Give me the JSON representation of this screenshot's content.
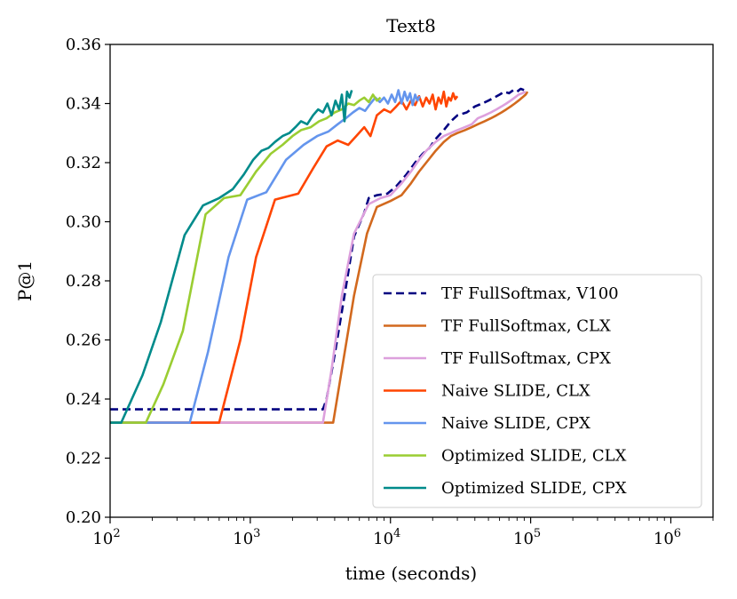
{
  "chart_data": {
    "type": "line",
    "title": "Text8",
    "xlabel": "time (seconds)",
    "ylabel": "P@1",
    "xscale": "log",
    "xlim": [
      100,
      2000000
    ],
    "ylim": [
      0.2,
      0.36
    ],
    "y_ticks": [
      {
        "value": 0.2,
        "label": "0.20"
      },
      {
        "value": 0.22,
        "label": "0.22"
      },
      {
        "value": 0.24,
        "label": "0.24"
      },
      {
        "value": 0.26,
        "label": "0.26"
      },
      {
        "value": 0.28,
        "label": "0.28"
      },
      {
        "value": 0.3,
        "label": "0.30"
      },
      {
        "value": 0.32,
        "label": "0.32"
      },
      {
        "value": 0.34,
        "label": "0.34"
      },
      {
        "value": 0.36,
        "label": "0.36"
      }
    ],
    "x_ticks": [
      {
        "value": 100,
        "base": "10",
        "exp": "2"
      },
      {
        "value": 1000,
        "base": "10",
        "exp": "3"
      },
      {
        "value": 10000,
        "base": "10",
        "exp": "4"
      },
      {
        "value": 100000,
        "base": "10",
        "exp": "5"
      },
      {
        "value": 1000000,
        "base": "10",
        "exp": "6"
      }
    ],
    "grid": false,
    "legend_position": "lower-right",
    "series": [
      {
        "name": "TF FullSoftmax, V100",
        "color": "#000080",
        "dashed": true,
        "x": [
          100,
          3300,
          3500,
          4000,
          4700,
          5500,
          6500,
          7000,
          8000,
          9500,
          11000,
          13000,
          15000,
          17000,
          19000,
          21000,
          24000,
          27000,
          30000,
          35000,
          40000,
          45000,
          50000,
          55000,
          60000,
          65000,
          70000,
          75000,
          80000,
          85000,
          90000
        ],
        "y": [
          0.2365,
          0.2365,
          0.24,
          0.255,
          0.275,
          0.295,
          0.303,
          0.308,
          0.309,
          0.3095,
          0.312,
          0.316,
          0.32,
          0.323,
          0.325,
          0.328,
          0.331,
          0.334,
          0.336,
          0.337,
          0.339,
          0.34,
          0.341,
          0.342,
          0.343,
          0.344,
          0.3435,
          0.3445,
          0.344,
          0.345,
          0.3445
        ]
      },
      {
        "name": "TF FullSoftmax, CLX",
        "color": "#d2691e",
        "dashed": false,
        "x": [
          100,
          3900,
          4500,
          5500,
          6800,
          8000,
          10000,
          12000,
          14000,
          16000,
          18000,
          21000,
          24000,
          27000,
          30000,
          34000,
          38000,
          42000,
          47000,
          52000,
          57000,
          62000,
          67000,
          72000,
          77000,
          82000,
          87000,
          92000,
          95000
        ],
        "y": [
          0.232,
          0.232,
          0.25,
          0.275,
          0.296,
          0.305,
          0.307,
          0.309,
          0.313,
          0.317,
          0.32,
          0.324,
          0.327,
          0.329,
          0.33,
          0.331,
          0.332,
          0.333,
          0.334,
          0.335,
          0.336,
          0.337,
          0.338,
          0.339,
          0.34,
          0.341,
          0.342,
          0.343,
          0.344
        ]
      },
      {
        "name": "TF FullSoftmax, CPX",
        "color": "#dda0dd",
        "dashed": false,
        "x": [
          100,
          3300,
          3800,
          4500,
          5500,
          7000,
          8500,
          10000,
          12000,
          14000,
          16000,
          18000,
          21000,
          24000,
          27000,
          30000,
          34000,
          38000,
          42000,
          47000,
          52000,
          57000,
          62000,
          67000,
          72000,
          77000,
          82000,
          87000,
          92000
        ],
        "y": [
          0.232,
          0.232,
          0.25,
          0.275,
          0.296,
          0.306,
          0.308,
          0.309,
          0.313,
          0.317,
          0.321,
          0.324,
          0.327,
          0.329,
          0.33,
          0.331,
          0.332,
          0.333,
          0.335,
          0.336,
          0.337,
          0.338,
          0.339,
          0.34,
          0.341,
          0.342,
          0.343,
          0.3435,
          0.344
        ]
      },
      {
        "name": "Naive SLIDE, CLX",
        "color": "#ff4500",
        "dashed": false,
        "x": [
          100,
          600,
          850,
          1100,
          1500,
          2200,
          2800,
          3500,
          4200,
          5000,
          5700,
          6500,
          7200,
          8000,
          9000,
          10000,
          11000,
          12000,
          13000,
          14000,
          15000,
          16000,
          17000,
          18000,
          19000,
          20000,
          21000,
          22000,
          23000,
          24000,
          25000,
          26000,
          27000,
          28000,
          29000,
          30000
        ],
        "y": [
          0.232,
          0.232,
          0.26,
          0.288,
          0.3075,
          0.3095,
          0.318,
          0.3255,
          0.3275,
          0.326,
          0.329,
          0.332,
          0.329,
          0.336,
          0.338,
          0.337,
          0.339,
          0.341,
          0.338,
          0.341,
          0.3395,
          0.3425,
          0.339,
          0.342,
          0.34,
          0.343,
          0.338,
          0.342,
          0.34,
          0.344,
          0.339,
          0.342,
          0.341,
          0.3435,
          0.3415,
          0.3425
        ]
      },
      {
        "name": "Naive SLIDE, CPX",
        "color": "#6495ed",
        "dashed": false,
        "x": [
          100,
          370,
          500,
          700,
          950,
          1300,
          1800,
          2400,
          3000,
          3600,
          4200,
          4800,
          5400,
          6000,
          6600,
          7200,
          7800,
          8400,
          9000,
          9600,
          10200,
          10800,
          11400,
          12000,
          12600,
          13200,
          13800,
          14400,
          15000,
          15600,
          16200
        ],
        "y": [
          0.232,
          0.232,
          0.256,
          0.288,
          0.3075,
          0.31,
          0.321,
          0.326,
          0.329,
          0.3305,
          0.333,
          0.335,
          0.337,
          0.3385,
          0.3375,
          0.34,
          0.342,
          0.3405,
          0.342,
          0.34,
          0.343,
          0.3405,
          0.3445,
          0.34,
          0.344,
          0.341,
          0.3435,
          0.3395,
          0.343,
          0.341,
          0.3425
        ]
      },
      {
        "name": "Optimized SLIDE, CLX",
        "color": "#9acd32",
        "dashed": false,
        "x": [
          100,
          180,
          240,
          330,
          480,
          650,
          850,
          1100,
          1400,
          1700,
          2000,
          2300,
          2700,
          3100,
          3500,
          4000,
          4500,
          5000,
          5500,
          6000,
          6500,
          7000,
          7500,
          8000,
          8500
        ],
        "y": [
          0.232,
          0.232,
          0.245,
          0.263,
          0.3025,
          0.308,
          0.309,
          0.317,
          0.323,
          0.326,
          0.329,
          0.331,
          0.332,
          0.334,
          0.335,
          0.337,
          0.338,
          0.34,
          0.3395,
          0.341,
          0.342,
          0.3405,
          0.343,
          0.341,
          0.342
        ]
      },
      {
        "name": "Optimized SLIDE, CPX",
        "color": "#008b8b",
        "dashed": false,
        "x": [
          100,
          120,
          170,
          230,
          340,
          460,
          600,
          750,
          900,
          1050,
          1200,
          1350,
          1500,
          1700,
          1900,
          2100,
          2300,
          2550,
          2800,
          3050,
          3300,
          3550,
          3800,
          4050,
          4300,
          4500,
          4700,
          4900,
          5100,
          5300
        ],
        "y": [
          0.232,
          0.232,
          0.248,
          0.266,
          0.2955,
          0.3055,
          0.308,
          0.311,
          0.316,
          0.321,
          0.324,
          0.325,
          0.327,
          0.329,
          0.33,
          0.332,
          0.334,
          0.333,
          0.336,
          0.338,
          0.337,
          0.34,
          0.336,
          0.341,
          0.338,
          0.343,
          0.334,
          0.344,
          0.342,
          0.3445
        ]
      }
    ]
  }
}
